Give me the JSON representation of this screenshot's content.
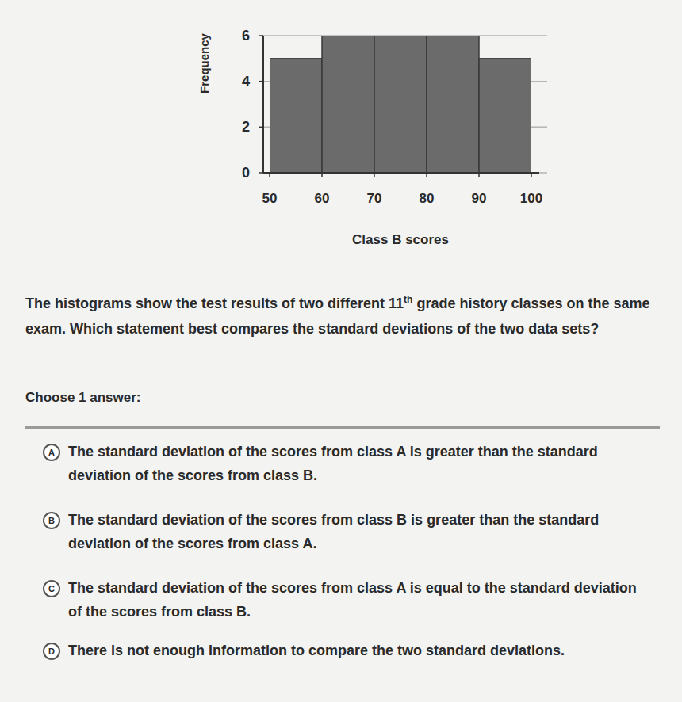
{
  "chart_data": {
    "type": "histogram",
    "xlabel": "Class B scores",
    "ylabel": "Frequency",
    "bins": [
      50,
      60,
      70,
      80,
      90,
      100
    ],
    "values": [
      5,
      6,
      6,
      6,
      5
    ],
    "color": "#6b6b6b",
    "xlim": [
      50,
      100
    ],
    "xticks": [
      50,
      60,
      70,
      80,
      90,
      100
    ],
    "ylim": [
      0,
      6
    ],
    "yticks": [
      0,
      2,
      4,
      6
    ],
    "grid": true
  },
  "question": {
    "before": "The histograms show the test results of two different ",
    "number": "11",
    "superscript": "th",
    "after": " grade history classes on the same exam. Which statement best compares the standard deviations of the two data sets?"
  },
  "prompt": "Choose 1 answer:",
  "choices": [
    {
      "letter": "A",
      "text": "The standard deviation of the scores from class A is greater than the standard deviation of the scores from class B."
    },
    {
      "letter": "B",
      "text": "The standard deviation of the scores from class B is greater than the standard deviation of the scores from class A."
    },
    {
      "letter": "C",
      "text": "The standard deviation of the scores from class A is equal to the standard deviation of the scores from class B."
    },
    {
      "letter": "D",
      "text": "There is not enough information to compare the two standard deviations."
    }
  ]
}
